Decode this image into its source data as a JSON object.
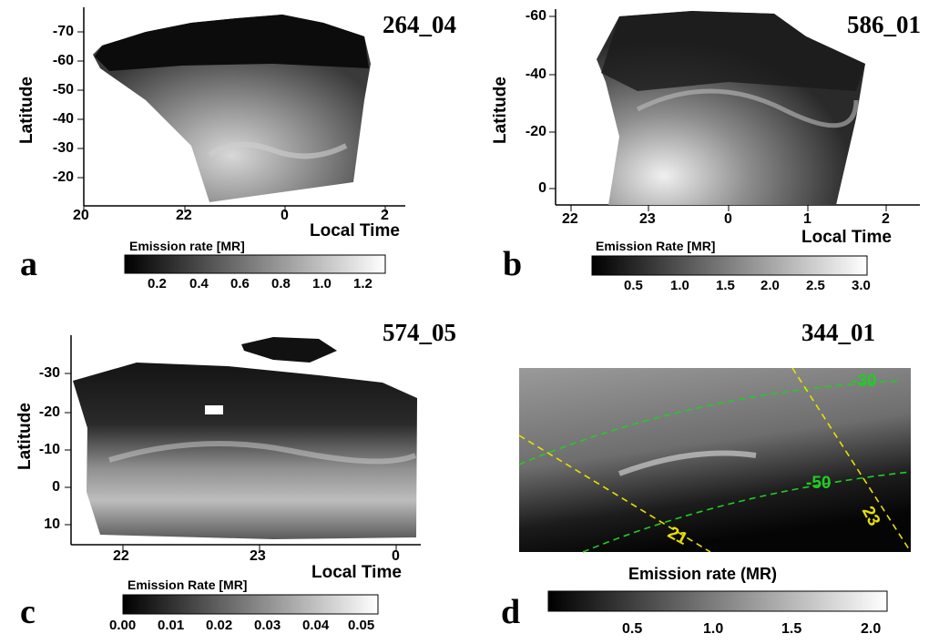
{
  "panels": [
    {
      "letter": "a",
      "id": "264_04",
      "ylabel": "Latitude",
      "xlabel": "Local Time",
      "yticks": [
        "-70",
        "-60",
        "-50",
        "-40",
        "-30",
        "-20"
      ],
      "xticks": [
        "20",
        "22",
        "0",
        "2"
      ],
      "colorbar_title": "Emission rate [MR]",
      "colorbar_ticks": [
        "0.2",
        "0.4",
        "0.6",
        "0.8",
        "1.0",
        "1.2"
      ]
    },
    {
      "letter": "b",
      "id": "586_01",
      "ylabel": "Latitude",
      "xlabel": "Local Time",
      "yticks": [
        "-60",
        "-40",
        "-20",
        "0"
      ],
      "xticks": [
        "22",
        "23",
        "0",
        "1",
        "2"
      ],
      "colorbar_title": "Emission Rate [MR]",
      "colorbar_ticks": [
        "0.5",
        "1.0",
        "1.5",
        "2.0",
        "2.5",
        "3.0"
      ]
    },
    {
      "letter": "c",
      "id": "574_05",
      "ylabel": "Latitude",
      "xlabel": "Local Time",
      "yticks": [
        "-30",
        "-20",
        "-10",
        "0",
        "10"
      ],
      "xticks": [
        "22",
        "23",
        "0"
      ],
      "colorbar_title": "Emission Rate [MR]",
      "colorbar_ticks": [
        "0.00",
        "0.01",
        "0.02",
        "0.03",
        "0.04",
        "0.05"
      ]
    },
    {
      "letter": "d",
      "id": "344_01",
      "grid_labels": [
        "-30",
        "-50",
        "21",
        "23"
      ],
      "colorbar_title": "Emission rate (MR)",
      "colorbar_ticks": [
        "0.5",
        "1.0",
        "1.5",
        "2.0"
      ]
    }
  ],
  "colors": {
    "grid_green": "#22cc22",
    "grid_yellow": "#e8e000"
  }
}
